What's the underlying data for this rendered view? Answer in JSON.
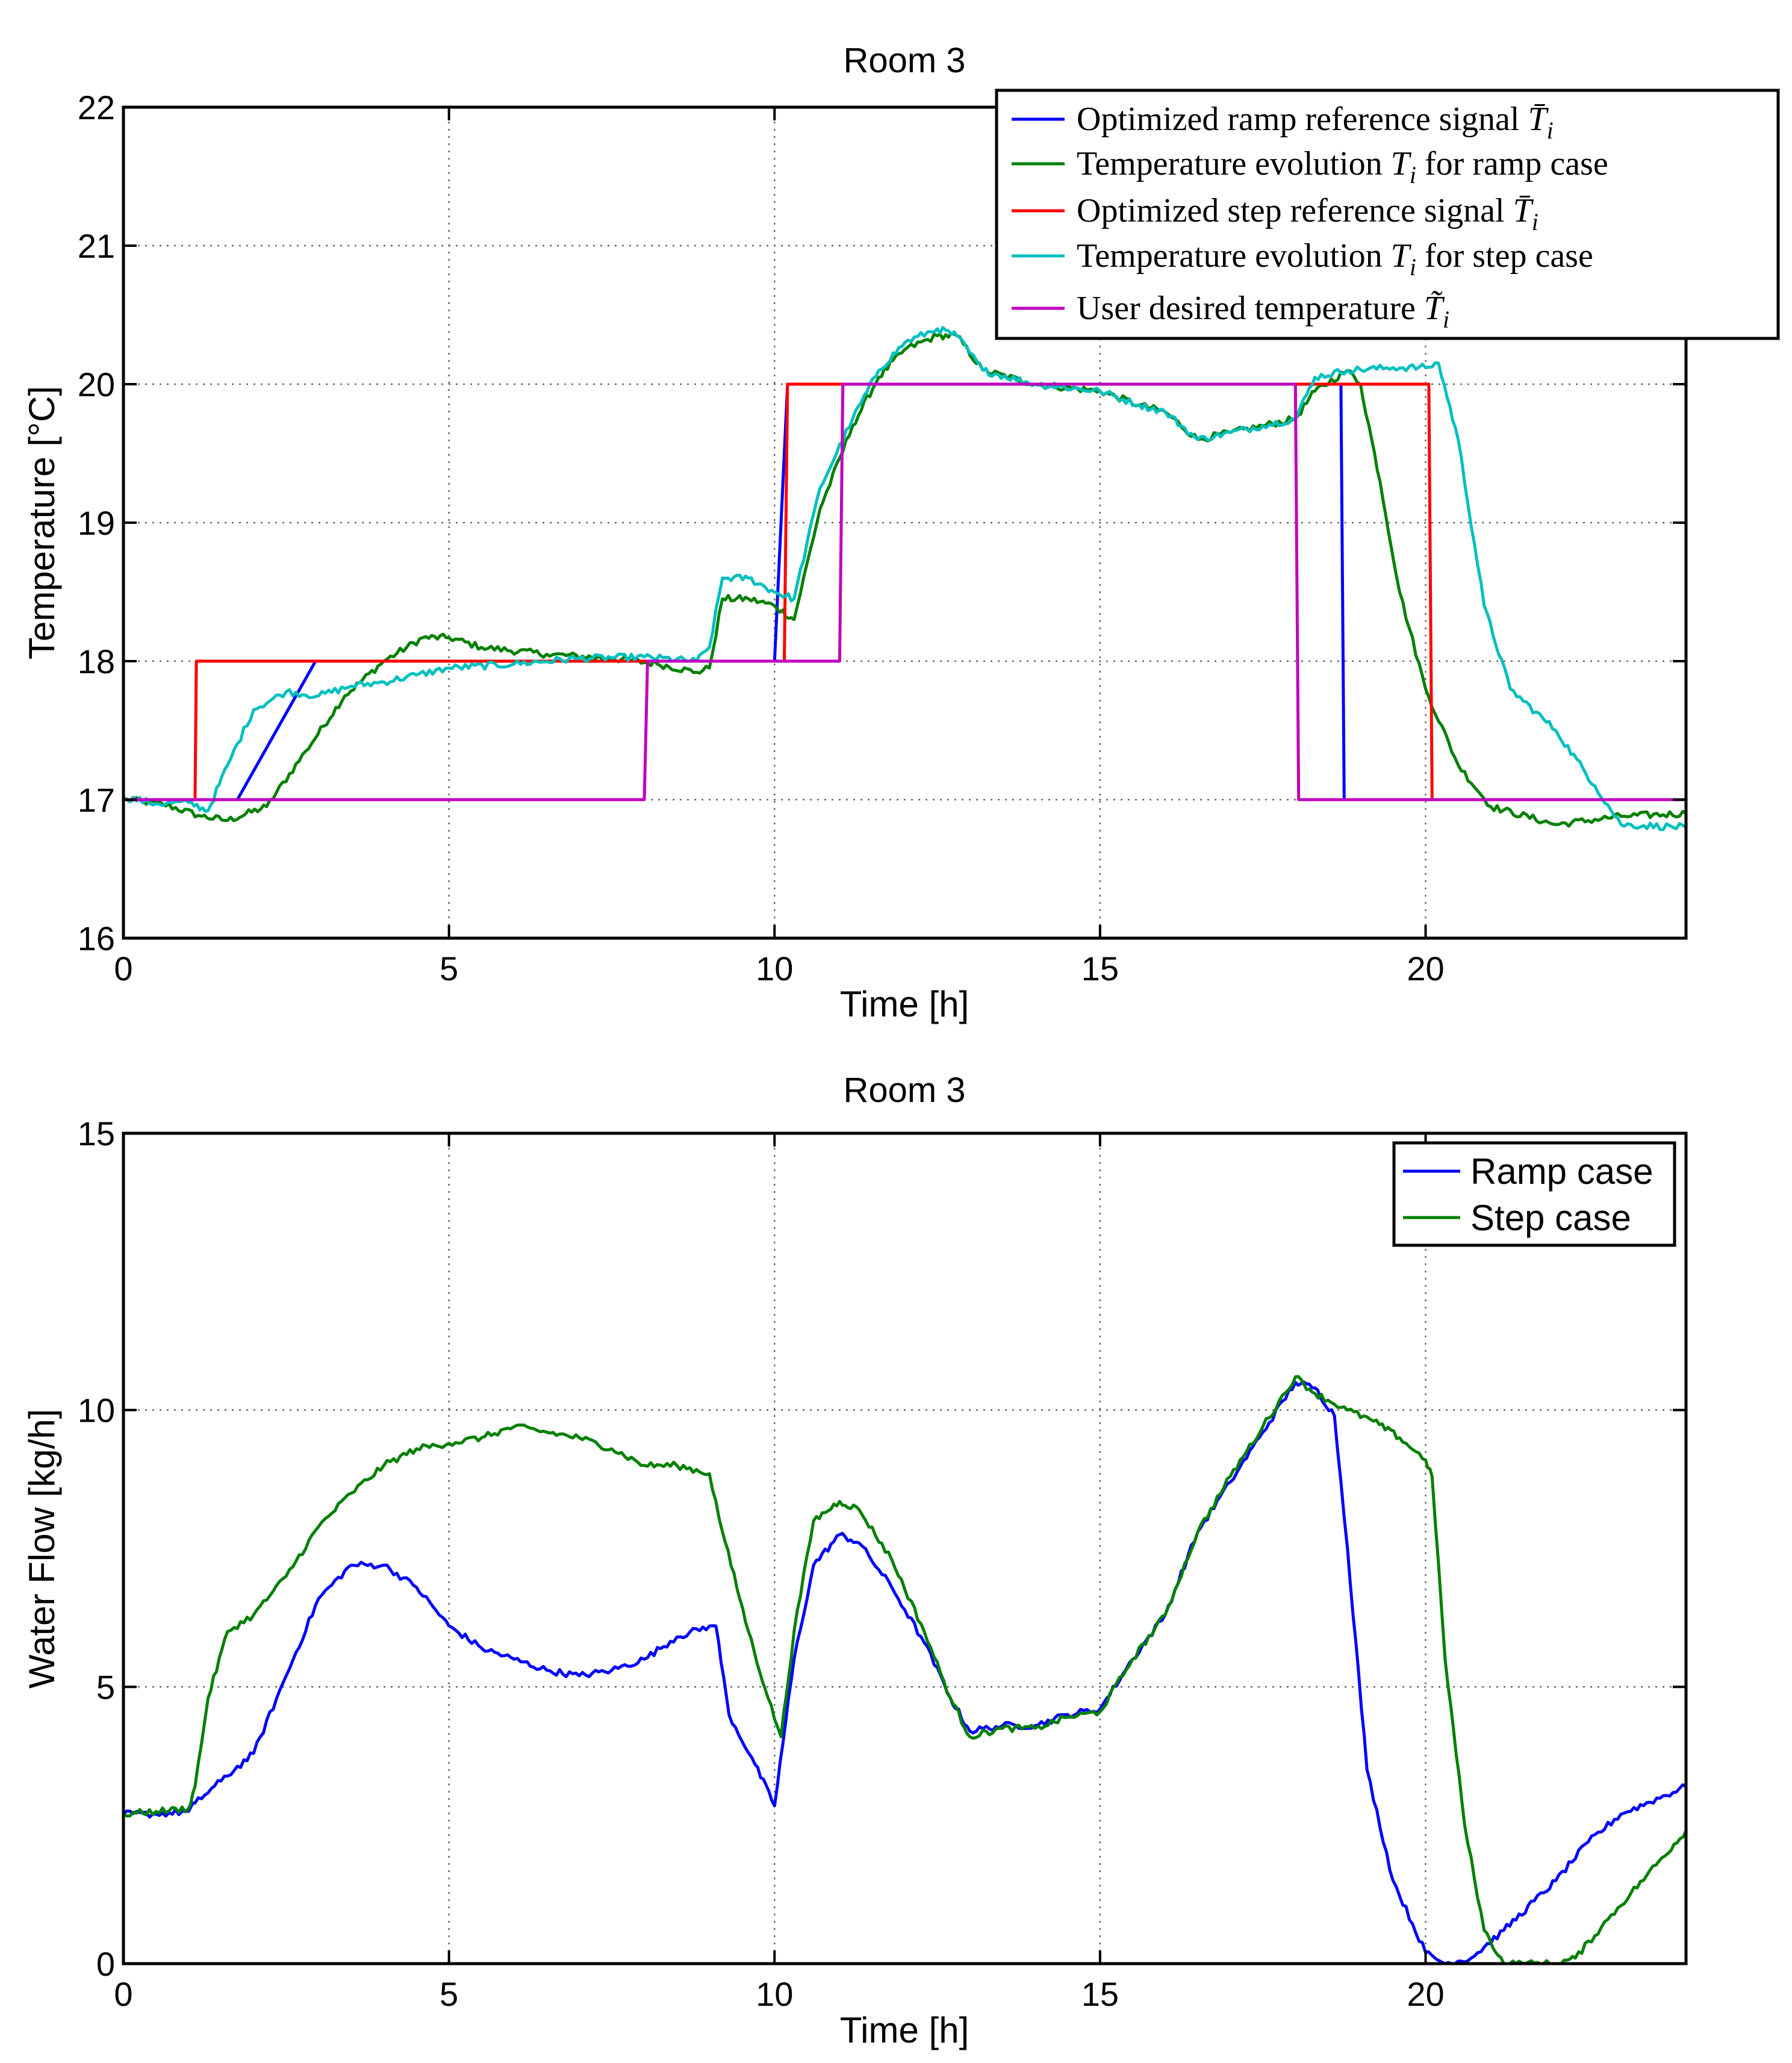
{
  "chart_data": [
    {
      "type": "line",
      "title": "Room 3",
      "xlabel": "Time [h]",
      "ylabel": "Temperature [°C]",
      "xlim": [
        0,
        24
      ],
      "ylim": [
        16,
        22
      ],
      "xticks": [
        0,
        5,
        10,
        15,
        20
      ],
      "yticks": [
        16,
        17,
        18,
        19,
        20,
        21,
        22
      ],
      "grid": true,
      "legend_position": "top-right",
      "series": [
        {
          "name": "Optimized ramp reference signal",
          "legend_text": "Optimized ramp reference signal ",
          "legend_math": "T̄",
          "legend_sub": "i",
          "legend_suffix": "",
          "color": "#0000ff",
          "points": [
            [
              0,
              17
            ],
            [
              1.75,
              17
            ],
            [
              2.95,
              18
            ],
            [
              10.0,
              18
            ],
            [
              10.2,
              20
            ],
            [
              18.7,
              20
            ],
            [
              18.75,
              17
            ],
            [
              24,
              17
            ]
          ]
        },
        {
          "name": "Temperature evolution for ramp case",
          "legend_text": "Temperature evolution ",
          "legend_math": "T",
          "legend_sub": "i",
          "legend_suffix": " for ramp case",
          "color": "#008000",
          "noise": 0.025,
          "points": [
            [
              0,
              17
            ],
            [
              0.6,
              16.97
            ],
            [
              1.2,
              16.88
            ],
            [
              1.6,
              16.85
            ],
            [
              2.2,
              16.95
            ],
            [
              2.8,
              17.35
            ],
            [
              3.4,
              17.75
            ],
            [
              4.0,
              18.0
            ],
            [
              4.6,
              18.17
            ],
            [
              5.0,
              18.17
            ],
            [
              5.5,
              18.1
            ],
            [
              6.5,
              18.05
            ],
            [
              7.5,
              18.02
            ],
            [
              8.2,
              17.98
            ],
            [
              8.8,
              17.92
            ],
            [
              9.0,
              17.95
            ],
            [
              9.2,
              18.45
            ],
            [
              9.6,
              18.45
            ],
            [
              10.0,
              18.4
            ],
            [
              10.3,
              18.3
            ],
            [
              10.7,
              19.1
            ],
            [
              11.2,
              19.7
            ],
            [
              11.6,
              20.05
            ],
            [
              12.0,
              20.25
            ],
            [
              12.5,
              20.35
            ],
            [
              12.8,
              20.35
            ],
            [
              13.2,
              20.1
            ],
            [
              14.0,
              20.0
            ],
            [
              15.0,
              19.95
            ],
            [
              15.6,
              19.85
            ],
            [
              16.0,
              19.8
            ],
            [
              16.5,
              19.6
            ],
            [
              17.0,
              19.65
            ],
            [
              17.5,
              19.7
            ],
            [
              18.0,
              19.75
            ],
            [
              18.3,
              19.95
            ],
            [
              18.8,
              20.1
            ],
            [
              19.0,
              20.0
            ],
            [
              19.3,
              19.3
            ],
            [
              19.6,
              18.5
            ],
            [
              20.0,
              17.8
            ],
            [
              20.5,
              17.25
            ],
            [
              21.0,
              16.95
            ],
            [
              22.0,
              16.82
            ],
            [
              23.0,
              16.88
            ],
            [
              24,
              16.9
            ]
          ]
        },
        {
          "name": "Optimized step reference signal",
          "legend_text": "Optimized step reference signal ",
          "legend_math": "T̄",
          "legend_sub": "i",
          "legend_suffix": "",
          "color": "#ff0000",
          "points": [
            [
              0,
              17
            ],
            [
              1.1,
              17
            ],
            [
              1.12,
              18
            ],
            [
              10.15,
              18
            ],
            [
              10.2,
              20
            ],
            [
              20.05,
              20
            ],
            [
              20.1,
              17
            ],
            [
              24,
              17
            ]
          ]
        },
        {
          "name": "Temperature evolution for step case",
          "legend_text": "Temperature evolution ",
          "legend_math": "T",
          "legend_sub": "i",
          "legend_suffix": " for step case",
          "color": "#00bfbf",
          "noise": 0.025,
          "points": [
            [
              0,
              17.02
            ],
            [
              0.5,
              16.97
            ],
            [
              1.0,
              16.98
            ],
            [
              1.3,
              16.92
            ],
            [
              1.6,
              17.25
            ],
            [
              2.0,
              17.65
            ],
            [
              2.5,
              17.78
            ],
            [
              3.0,
              17.75
            ],
            [
              3.5,
              17.82
            ],
            [
              4.0,
              17.85
            ],
            [
              4.5,
              17.9
            ],
            [
              5.0,
              17.95
            ],
            [
              6.0,
              17.98
            ],
            [
              7.0,
              18.02
            ],
            [
              8.0,
              18.03
            ],
            [
              8.8,
              18.0
            ],
            [
              9.0,
              18.1
            ],
            [
              9.2,
              18.6
            ],
            [
              9.6,
              18.6
            ],
            [
              10.0,
              18.5
            ],
            [
              10.3,
              18.45
            ],
            [
              10.7,
              19.25
            ],
            [
              11.2,
              19.75
            ],
            [
              11.6,
              20.1
            ],
            [
              12.0,
              20.3
            ],
            [
              12.5,
              20.4
            ],
            [
              12.8,
              20.35
            ],
            [
              13.2,
              20.1
            ],
            [
              14.0,
              20.0
            ],
            [
              15.0,
              19.95
            ],
            [
              15.6,
              19.85
            ],
            [
              16.0,
              19.8
            ],
            [
              16.5,
              19.6
            ],
            [
              17.0,
              19.65
            ],
            [
              17.5,
              19.7
            ],
            [
              18.0,
              19.75
            ],
            [
              18.3,
              20.05
            ],
            [
              18.8,
              20.1
            ],
            [
              19.5,
              20.12
            ],
            [
              20.0,
              20.12
            ],
            [
              20.2,
              20.15
            ],
            [
              20.5,
              19.6
            ],
            [
              20.9,
              18.4
            ],
            [
              21.3,
              17.8
            ],
            [
              22.0,
              17.5
            ],
            [
              22.6,
              17.1
            ],
            [
              23.0,
              16.82
            ],
            [
              24,
              16.8
            ]
          ]
        },
        {
          "name": "User desired temperature",
          "legend_text": "User desired temperature ",
          "legend_math": "T̃",
          "legend_sub": "i",
          "legend_suffix": "",
          "color": "#bf00bf",
          "points": [
            [
              0,
              17
            ],
            [
              8.0,
              17
            ],
            [
              8.05,
              18
            ],
            [
              11.0,
              18
            ],
            [
              11.05,
              20
            ],
            [
              18.0,
              20
            ],
            [
              18.05,
              17
            ],
            [
              24,
              17
            ]
          ]
        }
      ]
    },
    {
      "type": "line",
      "title": "Room 3",
      "xlabel": "Time [h]",
      "ylabel": "Water Flow [kg/h]",
      "xlim": [
        0,
        24
      ],
      "ylim": [
        0,
        15
      ],
      "xticks": [
        0,
        5,
        10,
        15,
        20
      ],
      "yticks": [
        0,
        5,
        10,
        15
      ],
      "grid": true,
      "legend_position": "top-right",
      "series": [
        {
          "name": "Ramp case",
          "color": "#0000ff",
          "noise": 0.06,
          "points": [
            [
              0,
              2.7
            ],
            [
              0.5,
              2.7
            ],
            [
              1.0,
              2.75
            ],
            [
              1.1,
              2.9
            ],
            [
              1.5,
              3.3
            ],
            [
              2.0,
              3.8
            ],
            [
              2.5,
              5.2
            ],
            [
              3.0,
              6.6
            ],
            [
              3.5,
              7.2
            ],
            [
              4.0,
              7.2
            ],
            [
              4.5,
              6.8
            ],
            [
              5.0,
              6.1
            ],
            [
              5.5,
              5.7
            ],
            [
              6.0,
              5.5
            ],
            [
              6.5,
              5.3
            ],
            [
              7.0,
              5.2
            ],
            [
              7.5,
              5.3
            ],
            [
              8.0,
              5.5
            ],
            [
              8.5,
              5.9
            ],
            [
              9.0,
              6.1
            ],
            [
              9.1,
              6.1
            ],
            [
              9.3,
              4.5
            ],
            [
              9.7,
              3.6
            ],
            [
              10.0,
              2.85
            ],
            [
              10.3,
              5.5
            ],
            [
              10.6,
              7.2
            ],
            [
              11.0,
              7.75
            ],
            [
              11.3,
              7.6
            ],
            [
              11.8,
              6.8
            ],
            [
              12.3,
              5.8
            ],
            [
              12.7,
              4.8
            ],
            [
              13.0,
              4.2
            ],
            [
              13.5,
              4.3
            ],
            [
              14.0,
              4.3
            ],
            [
              14.5,
              4.5
            ],
            [
              15.0,
              4.6
            ],
            [
              15.5,
              5.5
            ],
            [
              16.0,
              6.3
            ],
            [
              16.5,
              7.8
            ],
            [
              17.0,
              8.7
            ],
            [
              17.5,
              9.6
            ],
            [
              18.0,
              10.5
            ],
            [
              18.3,
              10.4
            ],
            [
              18.6,
              9.9
            ],
            [
              18.8,
              7.5
            ],
            [
              19.1,
              3.5
            ],
            [
              19.5,
              1.5
            ],
            [
              20.0,
              0.2
            ],
            [
              20.3,
              0.0
            ],
            [
              20.7,
              0.1
            ],
            [
              21.2,
              0.6
            ],
            [
              22.0,
              1.5
            ],
            [
              22.5,
              2.2
            ],
            [
              23.0,
              2.7
            ],
            [
              24,
              3.2
            ]
          ]
        },
        {
          "name": "Step case",
          "color": "#008000",
          "noise": 0.06,
          "points": [
            [
              0,
              2.7
            ],
            [
              0.5,
              2.75
            ],
            [
              1.0,
              2.8
            ],
            [
              1.1,
              3.2
            ],
            [
              1.3,
              4.8
            ],
            [
              1.6,
              6.0
            ],
            [
              2.0,
              6.3
            ],
            [
              2.5,
              7.0
            ],
            [
              3.0,
              7.9
            ],
            [
              3.5,
              8.5
            ],
            [
              4.0,
              9.0
            ],
            [
              4.5,
              9.3
            ],
            [
              5.0,
              9.4
            ],
            [
              5.5,
              9.5
            ],
            [
              6.0,
              9.7
            ],
            [
              6.5,
              9.6
            ],
            [
              7.0,
              9.5
            ],
            [
              7.5,
              9.3
            ],
            [
              8.0,
              9.0
            ],
            [
              8.5,
              9.0
            ],
            [
              9.0,
              8.85
            ],
            [
              9.2,
              7.8
            ],
            [
              9.6,
              6.0
            ],
            [
              9.9,
              4.8
            ],
            [
              10.1,
              4.1
            ],
            [
              10.3,
              6.0
            ],
            [
              10.6,
              8.0
            ],
            [
              11.0,
              8.35
            ],
            [
              11.3,
              8.2
            ],
            [
              11.8,
              7.3
            ],
            [
              12.3,
              6.0
            ],
            [
              12.7,
              4.8
            ],
            [
              13.0,
              4.1
            ],
            [
              13.5,
              4.25
            ],
            [
              14.0,
              4.25
            ],
            [
              14.5,
              4.45
            ],
            [
              15.0,
              4.55
            ],
            [
              15.5,
              5.5
            ],
            [
              16.0,
              6.3
            ],
            [
              16.5,
              7.8
            ],
            [
              17.0,
              8.8
            ],
            [
              17.5,
              9.7
            ],
            [
              18.0,
              10.6
            ],
            [
              18.3,
              10.3
            ],
            [
              18.8,
              10.0
            ],
            [
              19.2,
              9.8
            ],
            [
              19.6,
              9.5
            ],
            [
              20.0,
              9.1
            ],
            [
              20.1,
              8.8
            ],
            [
              20.3,
              5.5
            ],
            [
              20.6,
              2.5
            ],
            [
              20.9,
              0.6
            ],
            [
              21.2,
              0.0
            ],
            [
              22.0,
              0.0
            ],
            [
              22.3,
              0.1
            ],
            [
              22.8,
              0.8
            ],
            [
              23.4,
              1.6
            ],
            [
              24,
              2.4
            ]
          ]
        }
      ]
    }
  ]
}
